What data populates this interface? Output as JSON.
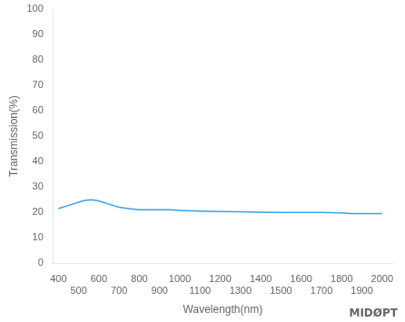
{
  "chart_data": {
    "type": "line",
    "xlabel": "Wavelength(nm)",
    "ylabel": "Transmission(%)",
    "annotations": [
      "MIDØPT"
    ],
    "x": [
      400,
      420,
      440,
      460,
      480,
      500,
      520,
      540,
      560,
      580,
      600,
      620,
      640,
      660,
      680,
      700,
      750,
      800,
      850,
      900,
      950,
      1000,
      1100,
      1200,
      1300,
      1400,
      1500,
      1600,
      1700,
      1800,
      1850,
      1900,
      1950,
      2000
    ],
    "values": [
      21.5,
      22.0,
      22.5,
      23.0,
      23.5,
      24.0,
      24.5,
      24.8,
      25.0,
      24.8,
      24.5,
      24.0,
      23.5,
      23.0,
      22.5,
      22.0,
      21.5,
      21.0,
      21.0,
      21.0,
      21.0,
      20.8,
      20.5,
      20.3,
      20.2,
      20.1,
      20.0,
      20.0,
      20.0,
      19.8,
      19.5,
      19.5,
      19.5,
      19.5
    ],
    "xlim": [
      375,
      2050
    ],
    "ylim": [
      0,
      100
    ],
    "xticks": [
      400,
      500,
      600,
      700,
      800,
      900,
      1000,
      1100,
      1200,
      1300,
      1400,
      1500,
      1600,
      1700,
      1800,
      1900,
      2000
    ],
    "yticks": [
      0,
      10,
      20,
      30,
      40,
      50,
      60,
      70,
      80,
      90,
      100
    ],
    "grid": false
  }
}
